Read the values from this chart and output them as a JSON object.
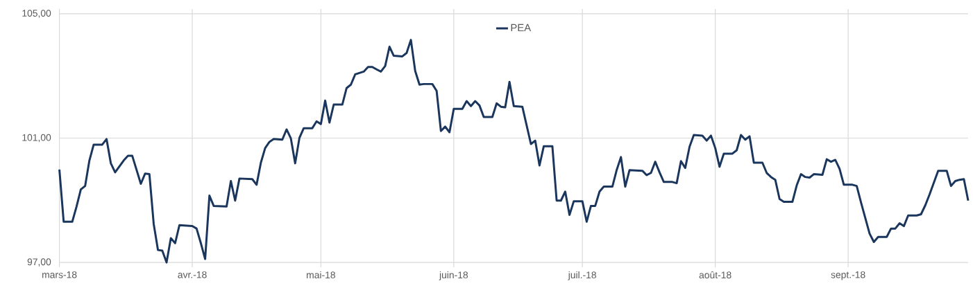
{
  "chart_data": {
    "type": "line",
    "x": [
      "2018-03-01",
      "2018-03-02",
      "2018-03-04",
      "2018-03-05",
      "2018-03-06",
      "2018-03-07",
      "2018-03-08",
      "2018-03-09",
      "2018-03-11",
      "2018-03-12",
      "2018-03-13",
      "2018-03-14",
      "2018-03-16",
      "2018-03-17",
      "2018-03-18",
      "2018-03-20",
      "2018-03-21",
      "2018-03-22",
      "2018-03-23",
      "2018-03-24",
      "2018-03-25",
      "2018-03-26",
      "2018-03-27",
      "2018-03-28",
      "2018-03-29",
      "2018-04-01",
      "2018-04-02",
      "2018-04-03",
      "2018-04-04",
      "2018-04-05",
      "2018-04-06",
      "2018-04-09",
      "2018-04-10",
      "2018-04-11",
      "2018-04-12",
      "2018-04-15",
      "2018-04-16",
      "2018-04-17",
      "2018-04-18",
      "2018-04-19",
      "2018-04-20",
      "2018-04-22",
      "2018-04-23",
      "2018-04-24",
      "2018-04-25",
      "2018-04-26",
      "2018-04-27",
      "2018-04-29",
      "2018-04-30",
      "2018-05-01",
      "2018-05-02",
      "2018-05-03",
      "2018-05-04",
      "2018-05-06",
      "2018-05-07",
      "2018-05-08",
      "2018-05-09",
      "2018-05-11",
      "2018-05-12",
      "2018-05-13",
      "2018-05-14",
      "2018-05-15",
      "2018-05-16",
      "2018-05-17",
      "2018-05-18",
      "2018-05-20",
      "2018-05-21",
      "2018-05-22",
      "2018-05-23",
      "2018-05-24",
      "2018-05-25",
      "2018-05-27",
      "2018-05-28",
      "2018-05-29",
      "2018-05-30",
      "2018-05-31",
      "2018-06-01",
      "2018-06-03",
      "2018-06-04",
      "2018-06-05",
      "2018-06-06",
      "2018-06-07",
      "2018-06-08",
      "2018-06-10",
      "2018-06-11",
      "2018-06-12",
      "2018-06-13",
      "2018-06-14",
      "2018-06-15",
      "2018-06-17",
      "2018-06-18",
      "2018-06-19",
      "2018-06-20",
      "2018-06-21",
      "2018-06-22",
      "2018-06-24",
      "2018-06-25",
      "2018-06-26",
      "2018-06-27",
      "2018-06-28",
      "2018-06-29",
      "2018-07-01",
      "2018-07-02",
      "2018-07-03",
      "2018-07-04",
      "2018-07-05",
      "2018-07-06",
      "2018-07-08",
      "2018-07-09",
      "2018-07-10",
      "2018-07-11",
      "2018-07-12",
      "2018-07-15",
      "2018-07-16",
      "2018-07-17",
      "2018-07-18",
      "2018-07-19",
      "2018-07-20",
      "2018-07-22",
      "2018-07-23",
      "2018-07-24",
      "2018-07-25",
      "2018-07-26",
      "2018-07-27",
      "2018-07-29",
      "2018-07-30",
      "2018-07-31",
      "2018-08-01",
      "2018-08-02",
      "2018-08-03",
      "2018-08-05",
      "2018-08-06",
      "2018-08-07",
      "2018-08-08",
      "2018-08-09",
      "2018-08-10",
      "2018-08-12",
      "2018-08-13",
      "2018-08-14",
      "2018-08-15",
      "2018-08-16",
      "2018-08-17",
      "2018-08-19",
      "2018-08-20",
      "2018-08-21",
      "2018-08-22",
      "2018-08-23",
      "2018-08-24",
      "2018-08-26",
      "2018-08-27",
      "2018-08-28",
      "2018-08-29",
      "2018-08-30",
      "2018-08-31",
      "2018-09-02",
      "2018-09-03",
      "2018-09-04",
      "2018-09-06",
      "2018-09-07",
      "2018-09-08",
      "2018-09-10",
      "2018-09-11",
      "2018-09-12",
      "2018-09-13",
      "2018-09-14",
      "2018-09-15",
      "2018-09-17",
      "2018-09-18",
      "2018-09-19",
      "2018-09-20",
      "2018-09-22",
      "2018-09-24",
      "2018-09-25",
      "2018-09-26",
      "2018-09-27",
      "2018-09-28",
      "2018-09-29"
    ],
    "series": [
      {
        "name": "PEA",
        "color": "#1b365d",
        "values": [
          99.99,
          98.31,
          98.31,
          98.8,
          99.35,
          99.46,
          100.28,
          100.79,
          100.79,
          100.97,
          100.19,
          99.9,
          100.28,
          100.43,
          100.43,
          99.53,
          99.86,
          99.84,
          98.24,
          97.4,
          97.38,
          97.0,
          97.78,
          97.62,
          98.2,
          98.17,
          98.09,
          97.62,
          97.11,
          99.15,
          98.82,
          98.8,
          99.62,
          98.99,
          99.7,
          99.68,
          99.5,
          100.21,
          100.68,
          100.88,
          100.97,
          100.95,
          101.28,
          100.99,
          100.19,
          101.01,
          101.32,
          101.32,
          101.54,
          101.45,
          102.21,
          101.5,
          102.08,
          102.08,
          102.61,
          102.72,
          103.05,
          103.14,
          103.29,
          103.29,
          103.21,
          103.14,
          103.32,
          103.94,
          103.65,
          103.63,
          103.74,
          104.16,
          103.16,
          102.72,
          102.74,
          102.74,
          102.52,
          101.23,
          101.37,
          101.19,
          101.94,
          101.94,
          102.19,
          102.03,
          102.19,
          102.05,
          101.68,
          101.68,
          102.12,
          102.01,
          101.99,
          102.81,
          102.03,
          102.01,
          101.41,
          100.81,
          100.92,
          100.12,
          100.74,
          100.74,
          98.99,
          98.99,
          99.28,
          98.53,
          98.97,
          98.97,
          98.31,
          98.82,
          98.82,
          99.28,
          99.44,
          99.44,
          99.97,
          100.39,
          99.44,
          99.97,
          99.95,
          99.81,
          99.88,
          100.24,
          99.9,
          99.59,
          99.59,
          99.55,
          100.26,
          100.04,
          100.72,
          101.1,
          101.08,
          100.92,
          101.08,
          100.68,
          100.08,
          100.5,
          100.5,
          100.61,
          101.1,
          100.95,
          101.06,
          100.21,
          100.21,
          99.88,
          99.75,
          99.66,
          99.04,
          98.95,
          98.95,
          99.48,
          99.84,
          99.75,
          99.73,
          99.84,
          99.82,
          100.32,
          100.24,
          100.3,
          100.01,
          99.5,
          99.5,
          99.46,
          98.93,
          97.93,
          97.66,
          97.82,
          97.82,
          98.09,
          98.09,
          98.26,
          98.17,
          98.51,
          98.51,
          98.55,
          98.84,
          99.19,
          99.95,
          99.95,
          99.46,
          99.62,
          99.66,
          99.68,
          98.99
        ]
      }
    ],
    "xlim": [
      "2018-03-01",
      "2018-09-29"
    ],
    "xticks": [
      {
        "value": "2018-03-01",
        "label": "mars-18"
      },
      {
        "value": "2018-04-01",
        "label": "avr.-18"
      },
      {
        "value": "2018-05-01",
        "label": "mai-18"
      },
      {
        "value": "2018-06-01",
        "label": "juin-18"
      },
      {
        "value": "2018-07-01",
        "label": "juil.-18"
      },
      {
        "value": "2018-08-01",
        "label": "août-18"
      },
      {
        "value": "2018-09-01",
        "label": "sept.-18"
      }
    ],
    "ylim": [
      97,
      105
    ],
    "yticks": [
      {
        "value": 97,
        "label": "97,00"
      },
      {
        "value": 101,
        "label": "101,00"
      },
      {
        "value": 105,
        "label": "105,00"
      }
    ],
    "grid": true,
    "legend": "top",
    "marker": "none",
    "line_style": "solid"
  }
}
